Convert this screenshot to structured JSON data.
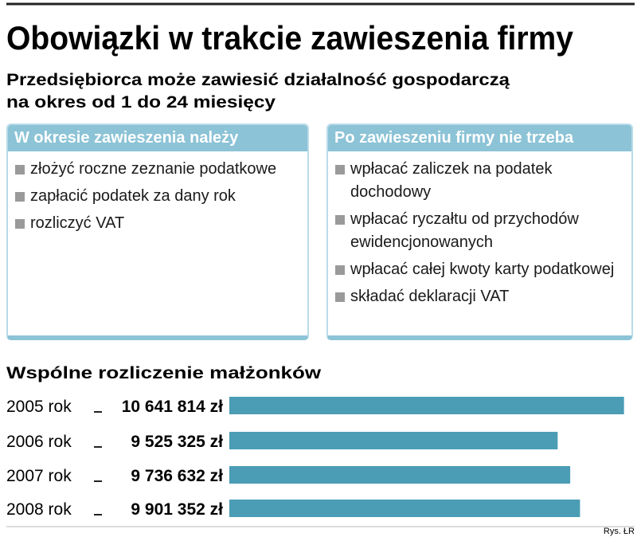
{
  "header": {
    "title": "Obowiązki w trakcie zawieszenia firmy",
    "subtitle": [
      "Przedsiębiorca może zawiesić działalność gospodarczą",
      "na okres od 1 do 24 miesięcy"
    ]
  },
  "boxes": [
    {
      "heading": "W okresie zawieszenia należy",
      "items": [
        "złożyć roczne zeznanie podatkowe",
        "zapłacić podatek za dany rok",
        "rozliczyć VAT"
      ]
    },
    {
      "heading": "Po zawieszeniu firmy nie trzeba",
      "items": [
        "wpłacać zaliczek na podatek dochodowy",
        "wpłacać ryczałtu od przychodów ewidencjonowanych",
        "wpłacać całej kwoty karty podatkowej",
        "składać deklaracji VAT"
      ]
    }
  ],
  "chart_data": {
    "type": "bar",
    "title": "Wspólne rozliczenie małżonków",
    "categories": [
      "2005 rok",
      "2006 rok",
      "2007 rok",
      "2008 rok"
    ],
    "values": [
      10641814,
      9525325,
      9736632,
      9901352
    ],
    "value_labels": [
      "10 641 814 zł",
      "9 525 325 zł",
      "9 736 632 zł",
      "9 901 352 zł"
    ],
    "color": "#4b9db5",
    "xlim": [
      4000000,
      10700000
    ]
  },
  "footer": {
    "credit": "Rys. ŁR"
  }
}
